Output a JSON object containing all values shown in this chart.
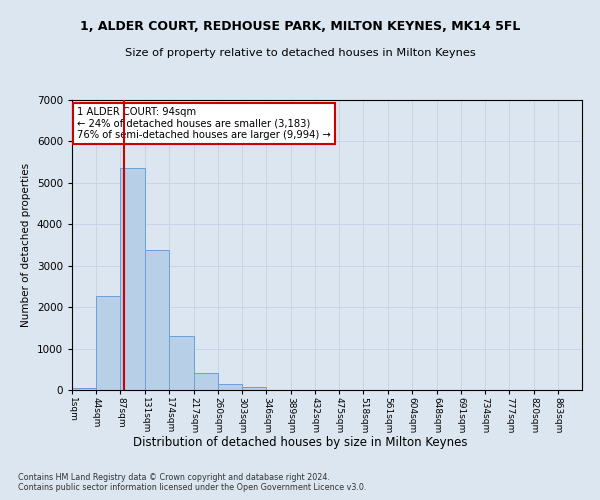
{
  "title": "1, ALDER COURT, REDHOUSE PARK, MILTON KEYNES, MK14 5FL",
  "subtitle": "Size of property relative to detached houses in Milton Keynes",
  "xlabel": "Distribution of detached houses by size in Milton Keynes",
  "ylabel": "Number of detached properties",
  "footer_line1": "Contains HM Land Registry data © Crown copyright and database right 2024.",
  "footer_line2": "Contains public sector information licensed under the Open Government Licence v3.0.",
  "bin_edges": [
    1,
    44,
    87,
    131,
    174,
    217,
    260,
    303,
    346,
    389,
    432,
    475,
    518,
    561,
    604,
    648,
    691,
    734,
    777,
    820,
    863
  ],
  "bin_labels": [
    "1sqm",
    "44sqm",
    "87sqm",
    "131sqm",
    "174sqm",
    "217sqm",
    "260sqm",
    "303sqm",
    "346sqm",
    "389sqm",
    "432sqm",
    "475sqm",
    "518sqm",
    "561sqm",
    "604sqm",
    "648sqm",
    "691sqm",
    "734sqm",
    "777sqm",
    "820sqm",
    "863sqm"
  ],
  "bar_heights": [
    50,
    2270,
    5370,
    3380,
    1310,
    400,
    140,
    70,
    0,
    0,
    0,
    0,
    0,
    0,
    0,
    0,
    0,
    0,
    0,
    0
  ],
  "bar_color": "#b8cfe8",
  "bar_edge_color": "#6a9fd8",
  "vline_x": 94,
  "vline_color": "#cc0000",
  "ylim": [
    0,
    7000
  ],
  "yticks": [
    0,
    1000,
    2000,
    3000,
    4000,
    5000,
    6000,
    7000
  ],
  "annotation_text": "1 ALDER COURT: 94sqm\n← 24% of detached houses are smaller (3,183)\n76% of semi-detached houses are larger (9,994) →",
  "annotation_box_color": "#ffffff",
  "annotation_box_edge": "#cc0000",
  "grid_color": "#c8d4e8",
  "bg_color": "#dce6f0",
  "title_fontsize": 9,
  "subtitle_fontsize": 8.5
}
